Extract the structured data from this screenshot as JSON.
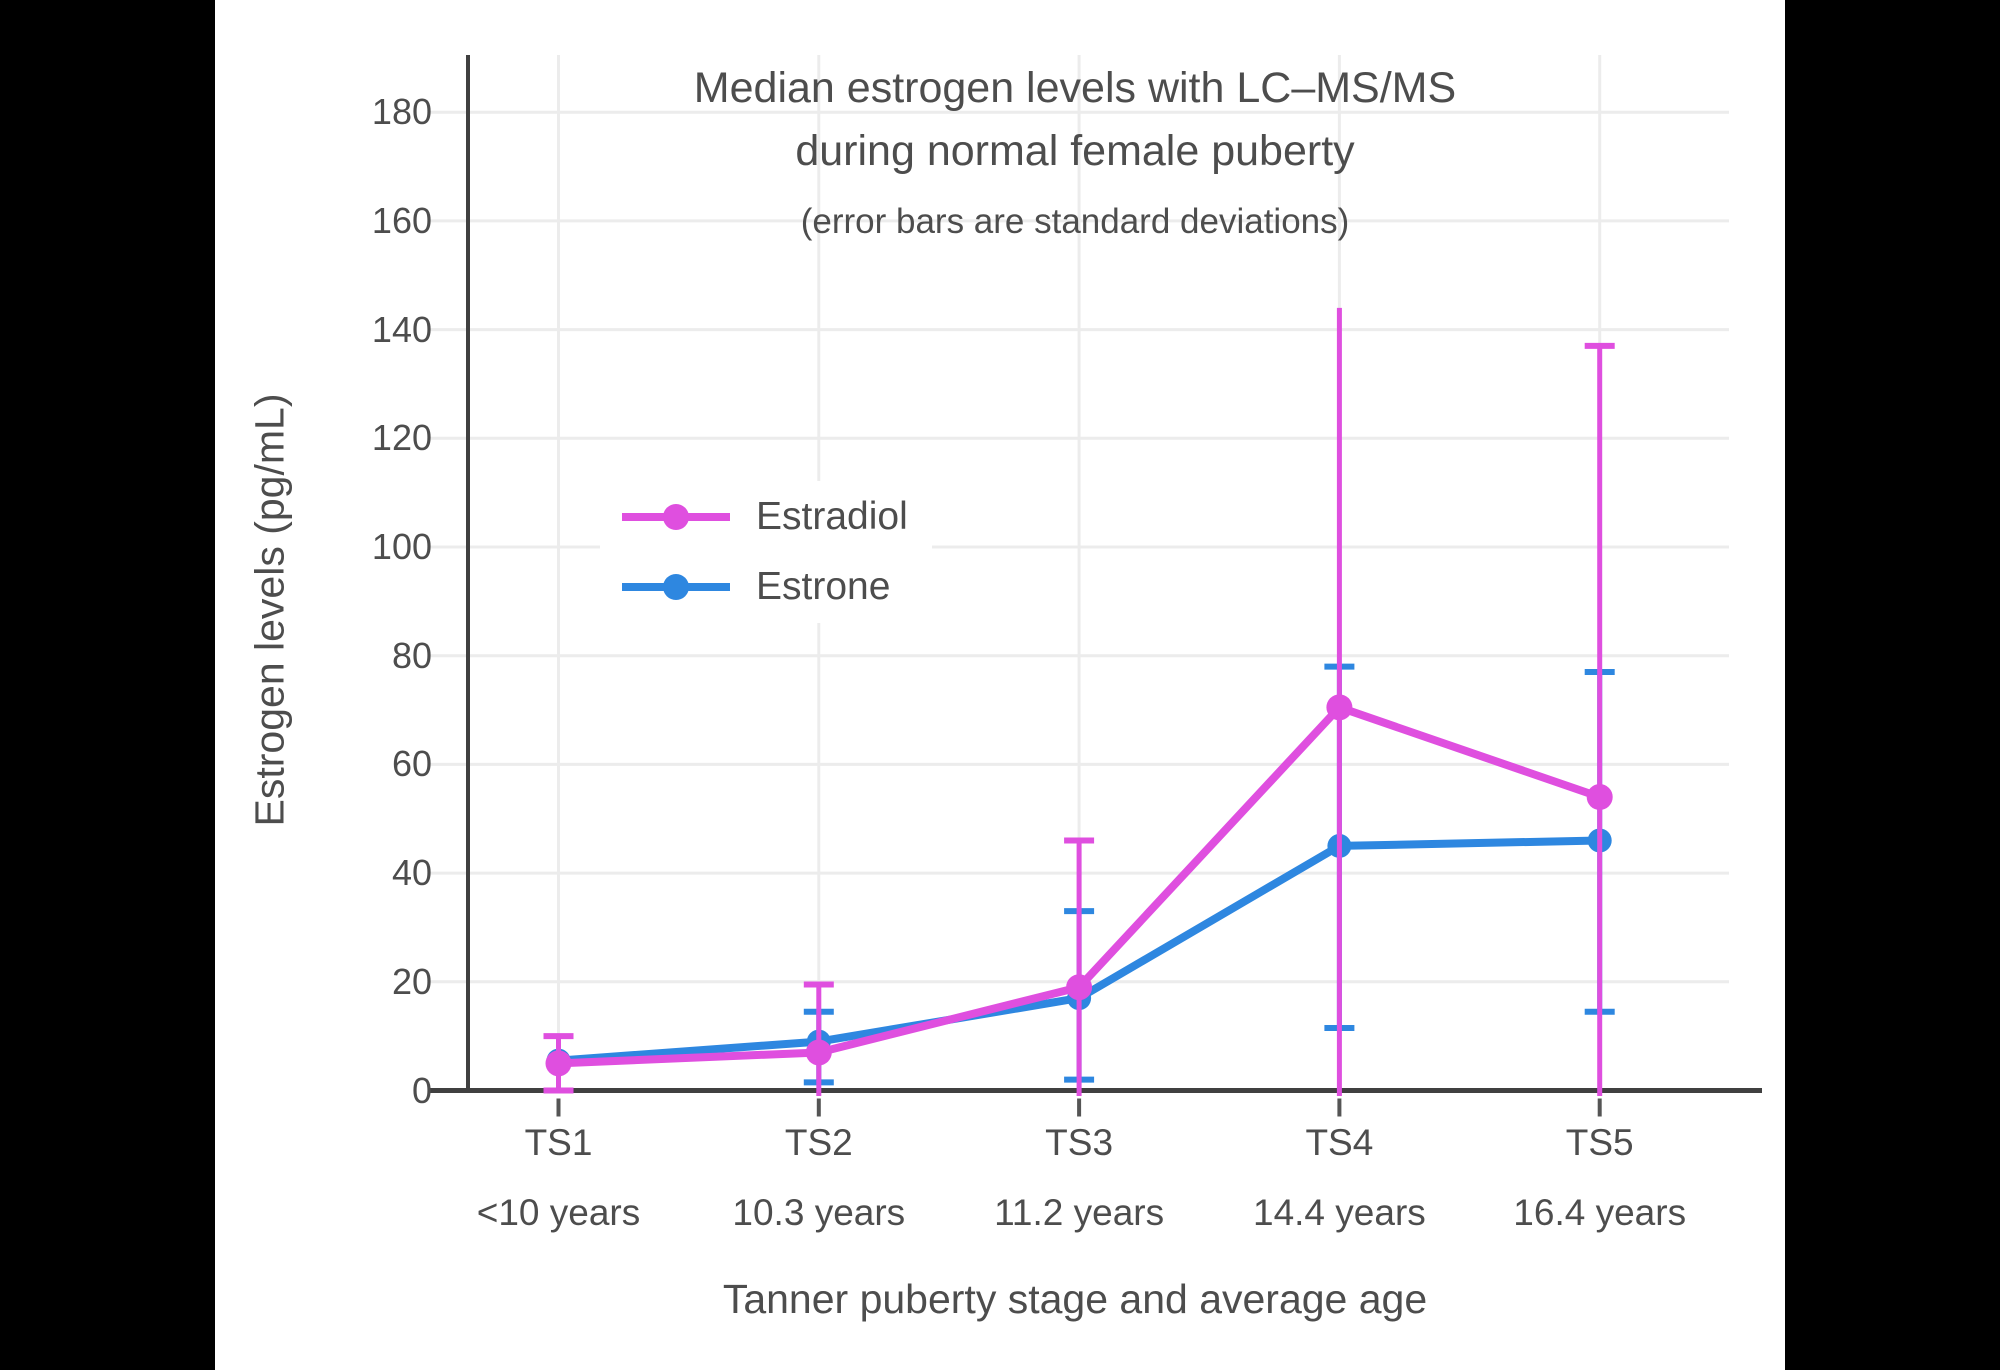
{
  "page": {
    "background": "#000000",
    "panel_background": "#ffffff",
    "text_color": "#4d4d4d",
    "axis_color": "#404040",
    "gridline_color": "#ececec"
  },
  "chart_data": {
    "type": "line",
    "title_lines": [
      "Median estrogen levels with LC–MS/MS",
      "during normal female puberty"
    ],
    "subtitle": "(error bars are standard deviations)",
    "xlabel": "Tanner puberty stage and average age",
    "ylabel": "Estrogen levels (pg/mL)",
    "ylim": [
      0,
      190
    ],
    "yticks": [
      0,
      20,
      40,
      60,
      80,
      100,
      120,
      140,
      160,
      180
    ],
    "grid": true,
    "legend_position": "inside-upper-left",
    "categories": [
      {
        "stage": "TS1",
        "age": "<10 years"
      },
      {
        "stage": "TS2",
        "age": "10.3 years"
      },
      {
        "stage": "TS3",
        "age": "11.2 years"
      },
      {
        "stage": "TS4",
        "age": "14.4 years"
      },
      {
        "stage": "TS5",
        "age": "16.4 years"
      }
    ],
    "series": [
      {
        "name": "Estradiol",
        "color": "#df4fdf",
        "values": [
          5,
          7,
          19,
          70.5,
          54
        ],
        "error_high": [
          10,
          19.5,
          46,
          144,
          137
        ],
        "error_low": [
          0,
          null,
          null,
          null,
          null
        ],
        "error_high_cap": [
          true,
          true,
          true,
          false,
          true
        ],
        "error_low_cap": [
          true,
          false,
          false,
          false,
          false
        ]
      },
      {
        "name": "Estrone",
        "color": "#2e87e0",
        "values": [
          5.5,
          9,
          17,
          45,
          46
        ],
        "error_high": [
          null,
          14.5,
          33,
          78,
          77
        ],
        "error_low": [
          null,
          1.5,
          2,
          11.5,
          14.5
        ],
        "error_high_cap": [
          false,
          true,
          true,
          true,
          true
        ],
        "error_low_cap": [
          false,
          true,
          true,
          true,
          true
        ]
      }
    ]
  }
}
